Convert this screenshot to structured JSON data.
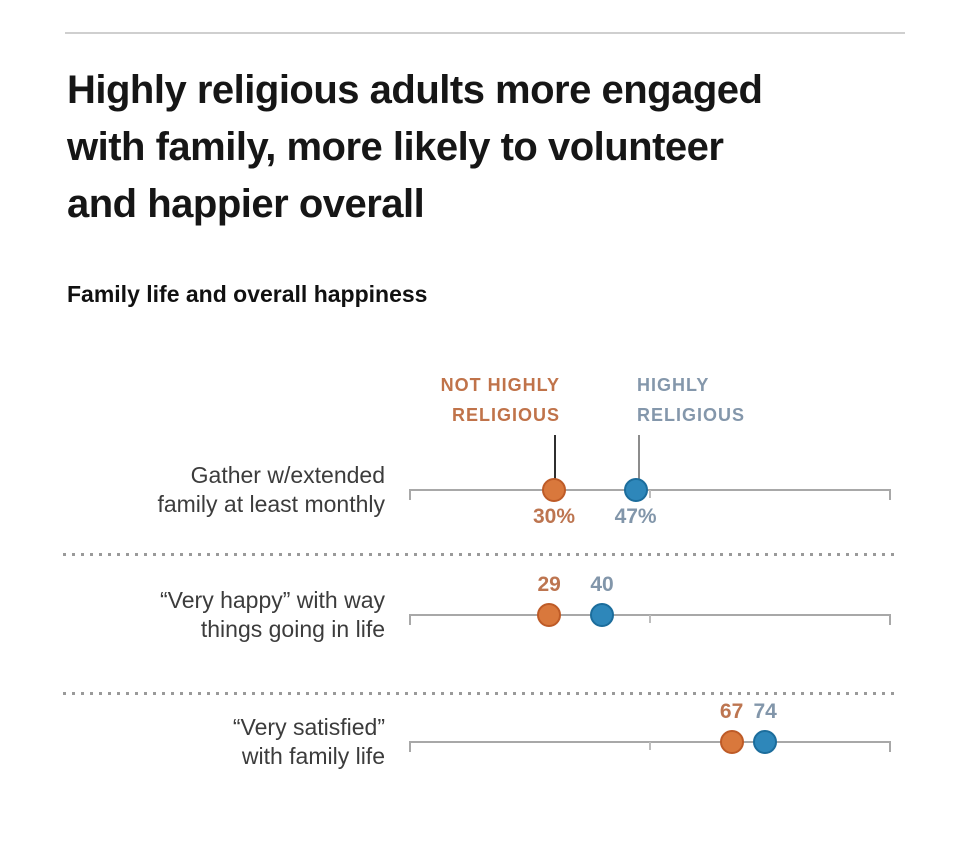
{
  "header": {
    "title": "Highly religious adults more engaged with family, more likely to volunteer and happier overall",
    "title_lines": [
      "Highly religious adults more engaged",
      "with family, more likely to volunteer",
      "and happier overall"
    ],
    "subtitle": "Family life and overall happiness"
  },
  "legend": {
    "not_highly": {
      "lines": [
        "NOT HIGHLY",
        "RELIGIOUS"
      ],
      "text_color": "#c0734a",
      "leader_color": "#2f2f2f"
    },
    "highly": {
      "lines": [
        "HIGHLY",
        "RELIGIOUS"
      ],
      "text_color": "#8497ab",
      "leader_color": "#8c8c8c"
    }
  },
  "colors": {
    "orange_fill": "#d9783c",
    "orange_edge": "#be5b27",
    "blue_fill": "#2e87ba",
    "blue_edge": "#1c6d9c",
    "orange_value_text": "#bd7550",
    "blue_value_text": "#8296aa",
    "track": "#a8a8a8",
    "rule": "#cfcfcf",
    "separator": "#9a9a9a"
  },
  "chart_data": {
    "type": "scatter",
    "subtype": "dot-plot",
    "title": "Family life and overall happiness",
    "xlim": [
      0,
      100
    ],
    "midpoint_tick": 50,
    "grid": false,
    "legend_position": "top, above first row with leader lines to dots",
    "categories": [
      "Gather w/extended family at least monthly",
      "“Very happy” with way things going in life",
      "“Very satisfied” with family life"
    ],
    "series": [
      {
        "name": "NOT HIGHLY RELIGIOUS",
        "color": "#d9783c",
        "values": [
          30,
          29,
          67
        ]
      },
      {
        "name": "HIGHLY RELIGIOUS",
        "color": "#2e87ba",
        "values": [
          47,
          40,
          74
        ]
      }
    ],
    "rows": [
      {
        "label_lines": [
          "Gather w/extended",
          "family at least monthly"
        ],
        "not_highly": 30,
        "highly": 47,
        "value_labels": [
          "30%",
          "47%"
        ],
        "value_label_position": "below"
      },
      {
        "label_lines": [
          "“Very happy” with way",
          "things going in life"
        ],
        "not_highly": 29,
        "highly": 40,
        "value_labels": [
          "29",
          "40"
        ],
        "value_label_position": "above"
      },
      {
        "label_lines": [
          "“Very satisfied”",
          "with family life"
        ],
        "not_highly": 67,
        "highly": 74,
        "value_labels": [
          "67",
          "74"
        ],
        "value_label_position": "above"
      }
    ]
  }
}
